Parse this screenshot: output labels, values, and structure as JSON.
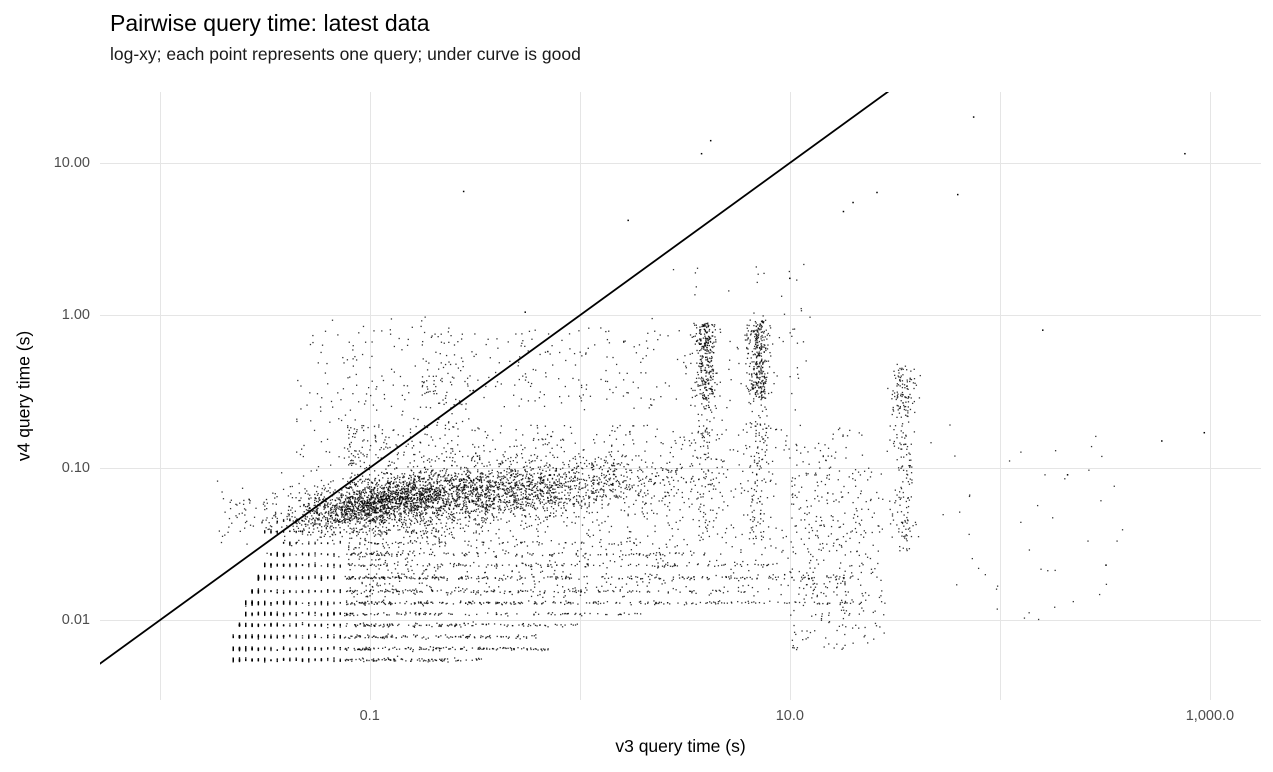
{
  "chart_data": {
    "type": "scatter",
    "title": "Pairwise query time: latest data",
    "subtitle": "log-xy; each point represents one query; under curve is good",
    "xlabel": "v3 query time (s)",
    "ylabel": "v4 query time (s)",
    "x_scale": "log10",
    "y_scale": "log10",
    "xlim": [
      0.0052,
      1750
    ],
    "ylim": [
      0.003,
      29.2
    ],
    "x_ticks": [
      {
        "v": 0.1,
        "label": "0.1"
      },
      {
        "v": 10,
        "label": "10.0"
      },
      {
        "v": 1000,
        "label": "1,000.0"
      }
    ],
    "y_ticks": [
      {
        "v": 0.01,
        "label": "0.01"
      },
      {
        "v": 0.1,
        "label": "0.10"
      },
      {
        "v": 1,
        "label": "1.00"
      },
      {
        "v": 10,
        "label": "10.00"
      }
    ],
    "x_gridlines": [
      0.01,
      0.1,
      1,
      10,
      100,
      1000
    ],
    "y_gridlines": [
      0.01,
      0.1,
      1,
      10
    ],
    "reference_line": {
      "type": "identity",
      "equation": "y = x",
      "color": "#000000",
      "width": 1.8
    },
    "point_color": "#000000",
    "point_alpha": 0.8,
    "grid_color": "#e5e5e5",
    "panel_background": "#ffffff",
    "seed": 42,
    "x_quantize": {
      "below_log": -1.12,
      "step_log": 0.03
    },
    "clusters": [
      {
        "kind": "band",
        "y": 0.0055,
        "count": 250,
        "xlog": [
          -1.66,
          -0.46
        ],
        "bias": 1.6
      },
      {
        "kind": "band",
        "y": 0.0065,
        "count": 300,
        "xlog": [
          -1.66,
          -0.15
        ],
        "bias": 1.8
      },
      {
        "kind": "band",
        "y": 0.0078,
        "count": 280,
        "xlog": [
          -1.64,
          -0.2
        ],
        "bias": 1.8
      },
      {
        "kind": "band",
        "y": 0.0093,
        "count": 260,
        "xlog": [
          -1.62,
          0.0
        ],
        "bias": 2.0
      },
      {
        "kind": "band",
        "y": 0.011,
        "count": 260,
        "xlog": [
          -1.6,
          0.3
        ],
        "bias": 2.2
      },
      {
        "kind": "band",
        "y": 0.013,
        "count": 450,
        "xlog": [
          -1.6,
          1.35
        ],
        "bias": 2.6
      },
      {
        "kind": "band",
        "y": 0.0155,
        "count": 240,
        "xlog": [
          -1.56,
          0.8
        ],
        "bias": 2.2
      },
      {
        "kind": "band",
        "y": 0.019,
        "count": 420,
        "xlog": [
          -1.54,
          1.3
        ],
        "bias": 2.6
      },
      {
        "kind": "band",
        "y": 0.023,
        "count": 220,
        "xlog": [
          -1.5,
          0.9
        ],
        "bias": 2.2
      },
      {
        "kind": "band",
        "y": 0.027,
        "count": 160,
        "xlog": [
          -1.46,
          0.6
        ],
        "bias": 2.0
      },
      {
        "kind": "band",
        "y": 0.032,
        "count": 90,
        "xlog": [
          -1.4,
          0.3
        ],
        "bias": 1.8
      },
      {
        "kind": "band",
        "y": 0.038,
        "count": 70,
        "xlog": [
          -1.5,
          -0.6
        ],
        "bias": 1.6
      },
      {
        "kind": "band",
        "y": 0.045,
        "count": 60,
        "xlog": [
          -1.45,
          -0.7
        ],
        "bias": 1.6
      },
      {
        "kind": "gauss",
        "count": 2600,
        "x_mean": -0.55,
        "x_sd": 0.5,
        "y_mean": -1.18,
        "y_sd": 0.1,
        "slope": 0.12
      },
      {
        "kind": "gauss",
        "count": 900,
        "x_mean": -0.95,
        "x_sd": 0.18,
        "y_mean": -1.23,
        "y_sd": 0.06,
        "slope": 0.3
      },
      {
        "kind": "box",
        "count": 1300,
        "xlog": [
          -1.1,
          1.35
        ],
        "ylog": [
          -1.85,
          -0.72
        ],
        "bias": 1.35
      },
      {
        "kind": "box",
        "count": 300,
        "xlog": [
          -0.75,
          1.1
        ],
        "ylog": [
          -0.62,
          -0.08
        ],
        "bias": 1.2
      },
      {
        "kind": "box",
        "count": 160,
        "xlog": [
          -1.35,
          -0.5
        ],
        "ylog": [
          -1.0,
          -0.3
        ],
        "bias": 1
      },
      {
        "kind": "box",
        "count": 40,
        "xlog": [
          -1.3,
          -0.6
        ],
        "ylog": [
          -0.3,
          0.0
        ],
        "bias": 1
      },
      {
        "kind": "vband",
        "count": 280,
        "x_mean": 0.6,
        "x_sd": 0.025,
        "ylog": [
          -0.55,
          -0.05
        ]
      },
      {
        "kind": "vband",
        "count": 90,
        "x_mean": 0.6,
        "x_sd": 0.03,
        "ylog": [
          -1.5,
          -0.55
        ]
      },
      {
        "kind": "vband",
        "count": 300,
        "x_mean": 0.85,
        "x_sd": 0.025,
        "ylog": [
          -0.55,
          -0.03
        ]
      },
      {
        "kind": "vband",
        "count": 90,
        "x_mean": 0.85,
        "x_sd": 0.03,
        "ylog": [
          -1.5,
          -0.55
        ]
      },
      {
        "kind": "vband",
        "count": 160,
        "x_mean": 1.54,
        "x_sd": 0.03,
        "ylog": [
          -1.55,
          -0.35
        ]
      },
      {
        "kind": "gauss",
        "count": 70,
        "x_mean": 1.54,
        "x_sd": 0.03,
        "y_mean": -0.5,
        "y_sd": 0.08,
        "slope": 0
      },
      {
        "kind": "box",
        "count": 260,
        "xlog": [
          1.0,
          1.45
        ],
        "ylog": [
          -2.2,
          -1.0
        ],
        "bias": 1
      },
      {
        "kind": "box",
        "count": 50,
        "xlog": [
          1.45,
          2.6
        ],
        "ylog": [
          -2.0,
          -0.7
        ],
        "bias": 1
      },
      {
        "kind": "box",
        "count": 25,
        "xlog": [
          0.3,
          1.1
        ],
        "ylog": [
          -0.15,
          0.35
        ],
        "bias": 1
      }
    ],
    "outliers": [
      [
        0.28,
        6.5
      ],
      [
        1.7,
        4.2
      ],
      [
        3.8,
        11.5
      ],
      [
        4.2,
        14
      ],
      [
        75,
        20
      ],
      [
        760,
        11.5
      ],
      [
        63,
        6.2
      ],
      [
        18,
        4.8
      ],
      [
        20,
        5.5
      ],
      [
        10,
        1.75
      ],
      [
        26,
        6.4
      ],
      [
        0.55,
        1.05
      ],
      [
        940,
        0.17
      ],
      [
        590,
        0.15
      ],
      [
        320,
        0.023
      ],
      [
        160,
        0.8
      ],
      [
        210,
        0.09
      ]
    ]
  }
}
